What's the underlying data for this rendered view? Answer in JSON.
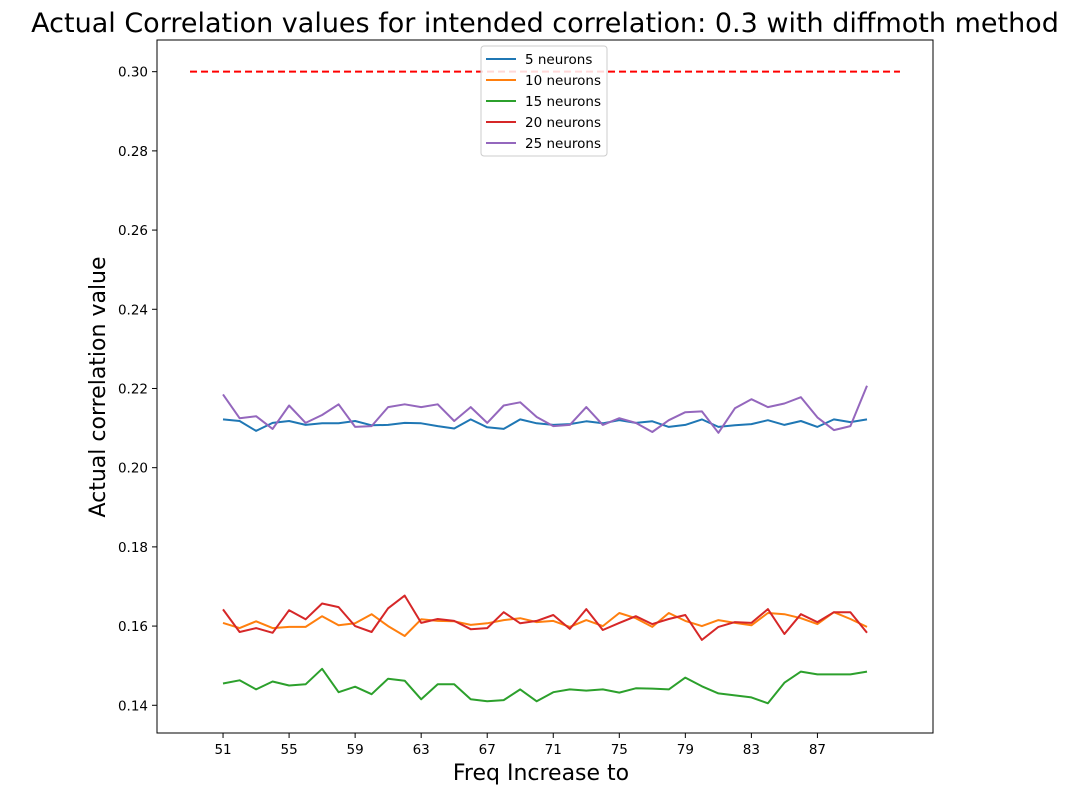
{
  "chart_data": {
    "type": "line",
    "title": "Actual Correlation values for intended correlation:  0.3 with diffmoth method",
    "xlabel": "Freq Increase to",
    "ylabel": "Actual correlation value",
    "xlim": [
      47,
      94
    ],
    "ylim": [
      0.133,
      0.308
    ],
    "xticks": [
      51,
      55,
      59,
      63,
      67,
      71,
      75,
      79,
      83,
      87
    ],
    "yticks": [
      0.14,
      0.16,
      0.18,
      0.2,
      0.22,
      0.24,
      0.26,
      0.28,
      0.3
    ],
    "ytick_labels": [
      "0.14",
      "0.16",
      "0.18",
      "0.20",
      "0.22",
      "0.24",
      "0.26",
      "0.28",
      "0.30"
    ],
    "legend_position": "upper center",
    "x": [
      51,
      52,
      53,
      54,
      55,
      56,
      57,
      58,
      59,
      60,
      61,
      62,
      63,
      64,
      65,
      66,
      67,
      68,
      69,
      70,
      71,
      72,
      73,
      74,
      75,
      76,
      77,
      78,
      79,
      80,
      81,
      82,
      83,
      84,
      85,
      86,
      87,
      88,
      89,
      90
    ],
    "series": [
      {
        "name": "5 neurons",
        "color": "#1f77b4",
        "values": [
          0.2122,
          0.2118,
          0.2093,
          0.2113,
          0.2118,
          0.2108,
          0.2112,
          0.2112,
          0.2118,
          0.2107,
          0.2108,
          0.2113,
          0.2112,
          0.2105,
          0.2099,
          0.2122,
          0.2102,
          0.2098,
          0.2122,
          0.2112,
          0.2108,
          0.211,
          0.2117,
          0.2112,
          0.212,
          0.2113,
          0.2117,
          0.2103,
          0.2108,
          0.2122,
          0.2103,
          0.2107,
          0.211,
          0.212,
          0.2108,
          0.2118,
          0.2103,
          0.2122,
          0.2115,
          0.2122
        ]
      },
      {
        "name": "10 neurons",
        "color": "#ff7f0e",
        "values": [
          0.1608,
          0.1595,
          0.1612,
          0.1595,
          0.1598,
          0.1598,
          0.1625,
          0.1602,
          0.1607,
          0.163,
          0.16,
          0.1575,
          0.1617,
          0.1613,
          0.1612,
          0.1603,
          0.1607,
          0.1615,
          0.162,
          0.161,
          0.1613,
          0.1598,
          0.1615,
          0.16,
          0.1633,
          0.162,
          0.1598,
          0.1633,
          0.1613,
          0.16,
          0.1615,
          0.1608,
          0.1602,
          0.1633,
          0.163,
          0.162,
          0.1605,
          0.1635,
          0.1618,
          0.1598
        ]
      },
      {
        "name": "15 neurons",
        "color": "#2ca02c",
        "values": [
          0.1455,
          0.1463,
          0.144,
          0.146,
          0.145,
          0.1453,
          0.1492,
          0.1433,
          0.1447,
          0.1428,
          0.1467,
          0.1462,
          0.1415,
          0.1453,
          0.1453,
          0.1415,
          0.141,
          0.1413,
          0.144,
          0.141,
          0.1433,
          0.144,
          0.1437,
          0.144,
          0.1432,
          0.1443,
          0.1442,
          0.144,
          0.147,
          0.1448,
          0.143,
          0.1425,
          0.142,
          0.1405,
          0.1457,
          0.1485,
          0.1478,
          0.1478,
          0.1478,
          0.1485
        ]
      },
      {
        "name": "20 neurons",
        "color": "#d62728",
        "values": [
          0.1642,
          0.1585,
          0.1595,
          0.1583,
          0.164,
          0.1617,
          0.1657,
          0.1648,
          0.16,
          0.1585,
          0.1645,
          0.1677,
          0.1608,
          0.1618,
          0.1613,
          0.1592,
          0.1595,
          0.1635,
          0.1607,
          0.1613,
          0.1628,
          0.1593,
          0.1643,
          0.159,
          0.1608,
          0.1625,
          0.1605,
          0.1618,
          0.1628,
          0.1565,
          0.1598,
          0.161,
          0.1608,
          0.1643,
          0.158,
          0.163,
          0.161,
          0.1635,
          0.1635,
          0.1583
        ]
      },
      {
        "name": "25 neurons",
        "color": "#9467bd",
        "values": [
          0.2185,
          0.2125,
          0.213,
          0.2098,
          0.2157,
          0.2113,
          0.2133,
          0.216,
          0.2103,
          0.2105,
          0.2153,
          0.216,
          0.2153,
          0.216,
          0.2118,
          0.2153,
          0.2113,
          0.2157,
          0.2165,
          0.2128,
          0.2105,
          0.2108,
          0.2153,
          0.2108,
          0.2125,
          0.2113,
          0.209,
          0.212,
          0.214,
          0.2142,
          0.2088,
          0.215,
          0.2173,
          0.2153,
          0.2162,
          0.2178,
          0.2127,
          0.2095,
          0.2105,
          0.2207
        ]
      }
    ],
    "reference_line": {
      "value": 0.3,
      "x_start": 49,
      "x_end": 92,
      "color": "#ff0000",
      "style": "dashed"
    }
  }
}
